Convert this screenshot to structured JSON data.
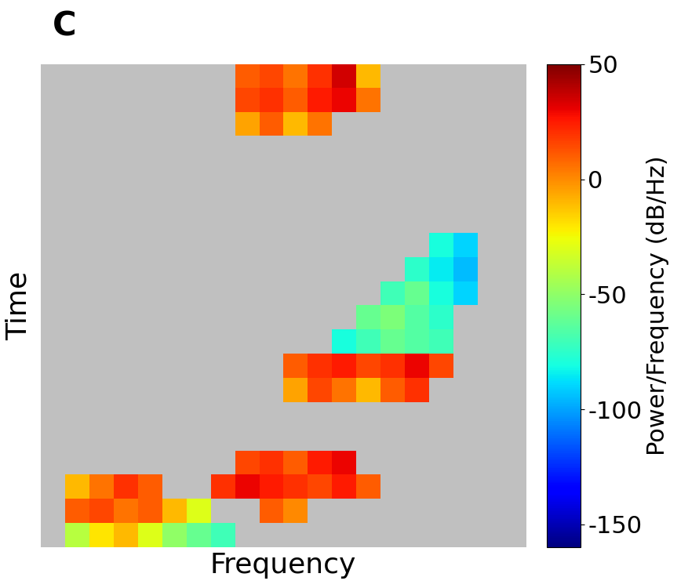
{
  "chart_data": {
    "type": "heatmap",
    "title": "C",
    "x_label": "Frequency",
    "y_label": "Time",
    "tick_labels": false,
    "color": "jet",
    "cells": [
      [
        null,
        null,
        null,
        null,
        null,
        null,
        null,
        null,
        10,
        15,
        5,
        20,
        35,
        -10,
        null,
        null,
        null,
        null,
        null,
        null
      ],
      [
        null,
        null,
        null,
        null,
        null,
        null,
        null,
        null,
        15,
        20,
        10,
        25,
        30,
        5,
        null,
        null,
        null,
        null,
        null,
        null
      ],
      [
        null,
        null,
        null,
        null,
        null,
        null,
        null,
        null,
        -5,
        10,
        -10,
        5,
        null,
        null,
        null,
        null,
        null,
        null,
        null,
        null
      ],
      [
        null,
        null,
        null,
        null,
        null,
        null,
        null,
        null,
        null,
        null,
        null,
        null,
        null,
        null,
        null,
        null,
        null,
        null,
        null,
        null
      ],
      [
        null,
        null,
        null,
        null,
        null,
        null,
        null,
        null,
        null,
        null,
        null,
        null,
        null,
        null,
        null,
        null,
        null,
        null,
        null,
        null
      ],
      [
        null,
        null,
        null,
        null,
        null,
        null,
        null,
        null,
        null,
        null,
        null,
        null,
        null,
        null,
        null,
        null,
        null,
        null,
        null,
        null
      ],
      [
        null,
        null,
        null,
        null,
        null,
        null,
        null,
        null,
        null,
        null,
        null,
        null,
        null,
        null,
        null,
        null,
        null,
        null,
        null,
        null
      ],
      [
        null,
        null,
        null,
        null,
        null,
        null,
        null,
        null,
        null,
        null,
        null,
        null,
        null,
        null,
        null,
        null,
        -80,
        -90,
        null,
        null
      ],
      [
        null,
        null,
        null,
        null,
        null,
        null,
        null,
        null,
        null,
        null,
        null,
        null,
        null,
        null,
        null,
        -75,
        -85,
        -95,
        null,
        null
      ],
      [
        null,
        null,
        null,
        null,
        null,
        null,
        null,
        null,
        null,
        null,
        null,
        null,
        null,
        null,
        -70,
        -60,
        -80,
        -90,
        null,
        null
      ],
      [
        null,
        null,
        null,
        null,
        null,
        null,
        null,
        null,
        null,
        null,
        null,
        null,
        null,
        -60,
        -55,
        -65,
        -75,
        null,
        null,
        null
      ],
      [
        null,
        null,
        null,
        null,
        null,
        null,
        null,
        null,
        null,
        null,
        null,
        null,
        -80,
        -70,
        -60,
        -65,
        -70,
        null,
        null,
        null
      ],
      [
        null,
        null,
        null,
        null,
        null,
        null,
        null,
        null,
        null,
        null,
        10,
        20,
        25,
        15,
        20,
        30,
        15,
        null,
        null,
        null
      ],
      [
        null,
        null,
        null,
        null,
        null,
        null,
        null,
        null,
        null,
        null,
        -5,
        15,
        5,
        -10,
        10,
        20,
        null,
        null,
        null,
        null
      ],
      [
        null,
        null,
        null,
        null,
        null,
        null,
        null,
        null,
        null,
        null,
        null,
        null,
        null,
        null,
        null,
        null,
        null,
        null,
        null,
        null
      ],
      [
        null,
        null,
        null,
        null,
        null,
        null,
        null,
        null,
        null,
        null,
        null,
        null,
        null,
        null,
        null,
        null,
        null,
        null,
        null,
        null
      ],
      [
        null,
        null,
        null,
        null,
        null,
        null,
        null,
        null,
        15,
        20,
        10,
        25,
        30,
        null,
        null,
        null,
        null,
        null,
        null,
        null
      ],
      [
        null,
        -10,
        5,
        20,
        10,
        null,
        null,
        20,
        30,
        25,
        20,
        15,
        25,
        10,
        null,
        null,
        null,
        null,
        null,
        null
      ],
      [
        null,
        10,
        15,
        5,
        10,
        -10,
        -30,
        null,
        null,
        10,
        0,
        null,
        null,
        null,
        null,
        null,
        null,
        null,
        null,
        null
      ],
      [
        null,
        -40,
        -20,
        -10,
        -30,
        -50,
        -60,
        -70,
        null,
        null,
        null,
        null,
        null,
        null,
        null,
        null,
        null,
        null,
        null,
        null
      ]
    ],
    "colorbar": {
      "label": "Power/Frequency (dB/Hz)",
      "range": [
        -160,
        50
      ],
      "ticks": [
        50,
        0,
        -50,
        -100,
        -150
      ]
    }
  }
}
